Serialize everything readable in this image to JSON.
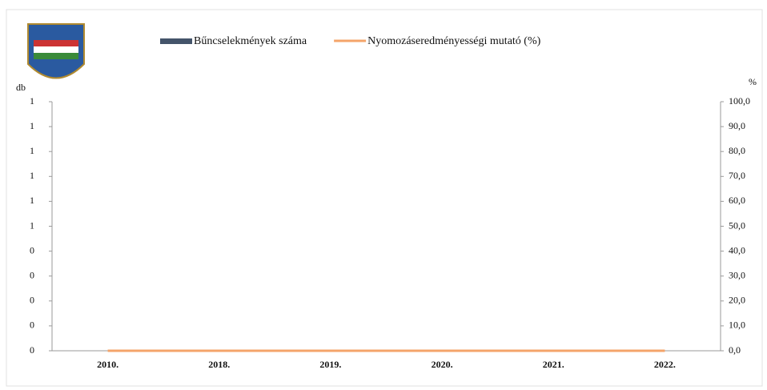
{
  "chart_data": {
    "type": "bar-line",
    "categories": [
      "2010.",
      "2018.",
      "2019.",
      "2020.",
      "2021.",
      "2022."
    ],
    "series": [
      {
        "name": "Bűncselekmények száma",
        "color": "#44546a",
        "type": "bar",
        "values": [
          0,
          0,
          0,
          0,
          0,
          0
        ]
      },
      {
        "name": "Nyomozáseredményességi mutató (%)",
        "color": "#f4a46a",
        "type": "line",
        "axis": "y2",
        "values": [
          0,
          0,
          0,
          0,
          0,
          0
        ]
      }
    ],
    "ylabel": "db",
    "y2label": "%",
    "ylim": [
      0,
      1
    ],
    "yticks": [
      0,
      {
        "value": 0.1,
        "label": "0"
      },
      {
        "value": 0.2,
        "label": "0"
      },
      {
        "value": 0.3,
        "label": "0"
      },
      {
        "value": 0.4,
        "label": "0"
      },
      {
        "value": 0.5,
        "label": "1"
      },
      {
        "value": 0.6,
        "label": "1"
      },
      {
        "value": 0.7,
        "label": "1"
      },
      {
        "value": 0.8,
        "label": "1"
      },
      {
        "value": 0.9,
        "label": "1"
      },
      1
    ],
    "y2lim": [
      0,
      100
    ],
    "y2ticks": [
      {
        "value": 0,
        "label": "0,0"
      },
      {
        "value": 10,
        "label": "10,0"
      },
      {
        "value": 20,
        "label": "20,0"
      },
      {
        "value": 30,
        "label": "30,0"
      },
      {
        "value": 40,
        "label": "40,0"
      },
      {
        "value": 50,
        "label": "50,0"
      },
      {
        "value": 60,
        "label": "60,0"
      },
      {
        "value": 70,
        "label": "70,0"
      },
      {
        "value": 80,
        "label": "80,0"
      },
      {
        "value": 90,
        "label": "90,0"
      },
      {
        "value": 100,
        "label": "100,0"
      }
    ]
  }
}
